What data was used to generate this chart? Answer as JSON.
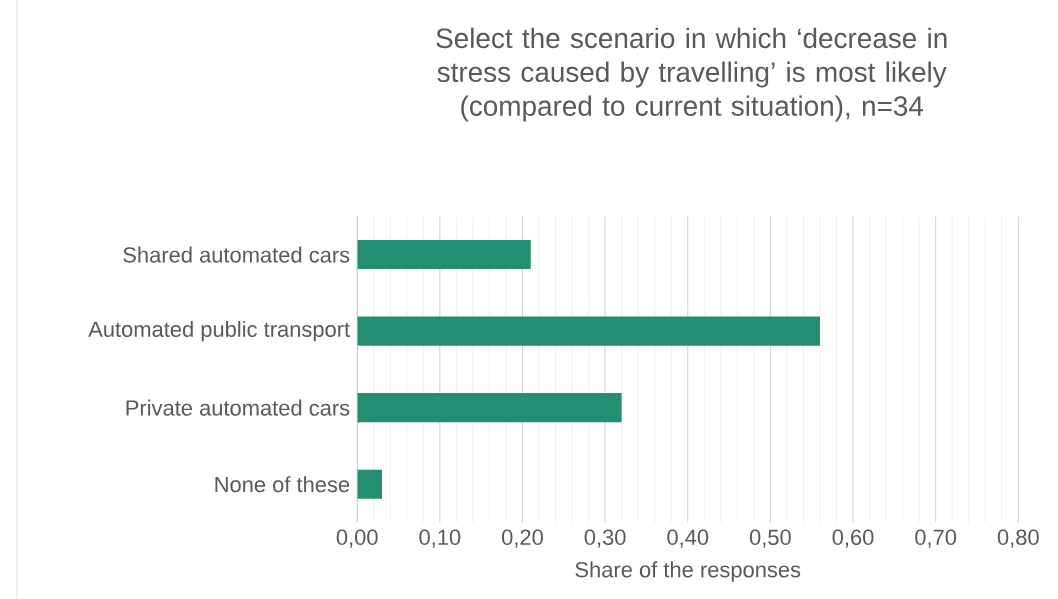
{
  "chart_data": {
    "type": "bar",
    "orientation": "horizontal",
    "title": "Select the scenario in which ‘decrease in stress caused by travelling’ is most likely (compared to current situation), n=34",
    "xlabel": "Share of the responses",
    "categories": [
      "Shared automated cars",
      "Automated public transport",
      "Private automated cars",
      "None of these"
    ],
    "values": [
      0.21,
      0.56,
      0.32,
      0.03
    ],
    "color": "#238e71",
    "xlim": [
      0,
      0.8
    ],
    "xticks": [
      {
        "value": 0,
        "label": "0,00"
      },
      {
        "value": 0.1,
        "label": "0,10"
      },
      {
        "value": 0.2,
        "label": "0,20"
      },
      {
        "value": 0.3,
        "label": "0,30"
      },
      {
        "value": 0.4,
        "label": "0,40"
      },
      {
        "value": 0.5,
        "label": "0,50"
      },
      {
        "value": 0.6,
        "label": "0,60"
      },
      {
        "value": 0.7,
        "label": "0,70"
      },
      {
        "value": 0.8,
        "label": "0,80"
      }
    ],
    "grid": "x"
  }
}
